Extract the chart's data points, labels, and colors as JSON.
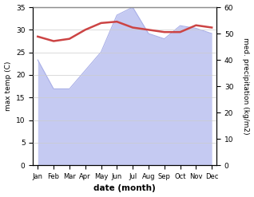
{
  "months": [
    "Jan",
    "Feb",
    "Mar",
    "Apr",
    "May",
    "Jun",
    "Jul",
    "Aug",
    "Sep",
    "Oct",
    "Nov",
    "Dec"
  ],
  "temp": [
    28.5,
    27.5,
    28.0,
    30.0,
    31.5,
    31.8,
    30.5,
    30.0,
    29.5,
    29.5,
    31.0,
    30.5
  ],
  "precip": [
    40,
    29,
    29,
    36,
    43,
    57,
    60,
    50,
    48,
    53,
    52,
    50
  ],
  "temp_color": "#cc4444",
  "precip_fill_color": "#c5caf2",
  "precip_edge_color": "#aab0e8",
  "background_color": "#ffffff",
  "xlabel": "date (month)",
  "ylabel_left": "max temp (C)",
  "ylabel_right": "med. precipitation (kg/m2)",
  "ylim_left": [
    0,
    35
  ],
  "ylim_right": [
    0,
    60
  ],
  "yticks_left": [
    0,
    5,
    10,
    15,
    20,
    25,
    30,
    35
  ],
  "yticks_right": [
    0,
    10,
    20,
    30,
    40,
    50,
    60
  ]
}
